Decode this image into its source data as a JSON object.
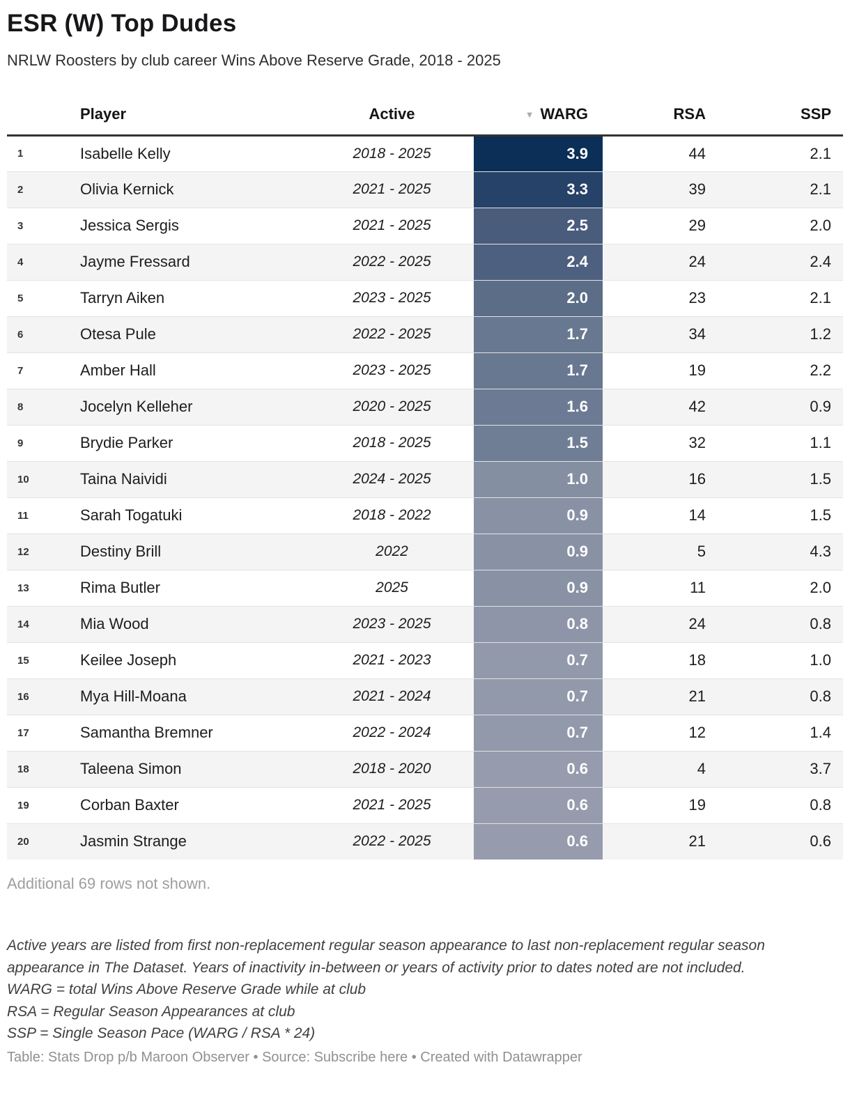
{
  "title": "ESR (W) Top Dudes",
  "subtitle": "NRLW Roosters by club career Wins Above Reserve Grade, 2018 - 2025",
  "icons": {
    "sort_desc": "▼"
  },
  "columns": {
    "rank": "",
    "player": "Player",
    "active": "Active",
    "warg": "WARG",
    "rsa": "RSA",
    "ssp": "SSP"
  },
  "chart_data": {
    "type": "table",
    "title": "ESR (W) Top Dudes",
    "subtitle": "NRLW Roosters by club career Wins Above Reserve Grade, 2018 - 2025",
    "column_labels": [
      "Player",
      "Active",
      "WARG",
      "RSA",
      "SSP"
    ],
    "sort": {
      "column": "WARG",
      "direction": "desc"
    },
    "heatmap": {
      "column": "WARG",
      "max_value": 3.9,
      "min_value": 0.6,
      "max_color": "#0b2f56",
      "min_color": "#969cad",
      "text_color": "#ffffff"
    },
    "rows": [
      {
        "rank": 1,
        "player": "Isabelle Kelly",
        "active": "2018 - 2025",
        "warg": "3.9",
        "rsa": "44",
        "ssp": "2.1",
        "warg_color": "#0b2f56"
      },
      {
        "rank": 2,
        "player": "Olivia Kernick",
        "active": "2021 - 2025",
        "warg": "3.3",
        "rsa": "39",
        "ssp": "2.1",
        "warg_color": "#274268"
      },
      {
        "rank": 3,
        "player": "Jessica Sergis",
        "active": "2021 - 2025",
        "warg": "2.5",
        "rsa": "29",
        "ssp": "2.0",
        "warg_color": "#4a5c7c"
      },
      {
        "rank": 4,
        "player": "Jayme Fressard",
        "active": "2022 - 2025",
        "warg": "2.4",
        "rsa": "24",
        "ssp": "2.4",
        "warg_color": "#4e607f"
      },
      {
        "rank": 5,
        "player": "Tarryn Aiken",
        "active": "2023 - 2025",
        "warg": "2.0",
        "rsa": "23",
        "ssp": "2.1",
        "warg_color": "#5c6d88"
      },
      {
        "rank": 6,
        "player": "Otesa Pule",
        "active": "2022 - 2025",
        "warg": "1.7",
        "rsa": "34",
        "ssp": "1.2",
        "warg_color": "#687890"
      },
      {
        "rank": 7,
        "player": "Amber Hall",
        "active": "2023 - 2025",
        "warg": "1.7",
        "rsa": "19",
        "ssp": "2.2",
        "warg_color": "#687890"
      },
      {
        "rank": 8,
        "player": "Jocelyn Kelleher",
        "active": "2020 - 2025",
        "warg": "1.6",
        "rsa": "42",
        "ssp": "0.9",
        "warg_color": "#6c7b93"
      },
      {
        "rank": 9,
        "player": "Brydie Parker",
        "active": "2018 - 2025",
        "warg": "1.5",
        "rsa": "32",
        "ssp": "1.1",
        "warg_color": "#707e95"
      },
      {
        "rank": 10,
        "player": "Taina Naividi",
        "active": "2024 - 2025",
        "warg": "1.0",
        "rsa": "16",
        "ssp": "1.5",
        "warg_color": "#858fa2"
      },
      {
        "rank": 11,
        "player": "Sarah Togatuki",
        "active": "2018 - 2022",
        "warg": "0.9",
        "rsa": "14",
        "ssp": "1.5",
        "warg_color": "#8992a5"
      },
      {
        "rank": 12,
        "player": "Destiny Brill",
        "active": "2022",
        "warg": "0.9",
        "rsa": "5",
        "ssp": "4.3",
        "warg_color": "#8992a5"
      },
      {
        "rank": 13,
        "player": "Rima Butler",
        "active": "2025",
        "warg": "0.9",
        "rsa": "11",
        "ssp": "2.0",
        "warg_color": "#8992a5"
      },
      {
        "rank": 14,
        "player": "Mia Wood",
        "active": "2023 - 2025",
        "warg": "0.8",
        "rsa": "24",
        "ssp": "0.8",
        "warg_color": "#8e95a8"
      },
      {
        "rank": 15,
        "player": "Keilee Joseph",
        "active": "2021 - 2023",
        "warg": "0.7",
        "rsa": "18",
        "ssp": "1.0",
        "warg_color": "#9299aa"
      },
      {
        "rank": 16,
        "player": "Mya Hill-Moana",
        "active": "2021 - 2024",
        "warg": "0.7",
        "rsa": "21",
        "ssp": "0.8",
        "warg_color": "#9299aa"
      },
      {
        "rank": 17,
        "player": "Samantha Bremner",
        "active": "2022 - 2024",
        "warg": "0.7",
        "rsa": "12",
        "ssp": "1.4",
        "warg_color": "#9299aa"
      },
      {
        "rank": 18,
        "player": "Taleena Simon",
        "active": "2018 - 2020",
        "warg": "0.6",
        "rsa": "4",
        "ssp": "3.7",
        "warg_color": "#969cad"
      },
      {
        "rank": 19,
        "player": "Corban Baxter",
        "active": "2021 - 2025",
        "warg": "0.6",
        "rsa": "19",
        "ssp": "0.8",
        "warg_color": "#969cad"
      },
      {
        "rank": 20,
        "player": "Jasmin Strange",
        "active": "2022 - 2025",
        "warg": "0.6",
        "rsa": "21",
        "ssp": "0.6",
        "warg_color": "#969cad"
      }
    ]
  },
  "additional_note": "Additional 69 rows not shown.",
  "notes": {
    "active_years": "Active years are listed from first non-replacement regular season appearance to last non-replacement regular season appearance in The Dataset. Years of inactivity in-between or years of activity prior to dates noted are not included.",
    "warg_def": "WARG = total Wins Above Reserve Grade while at club",
    "rsa_def": "RSA = Regular Season Appearances at club",
    "ssp_def": "SSP = Single Season Pace (WARG / RSA * 24)"
  },
  "footer": {
    "table_credit": "Table: Stats Drop p/b Maroon Observer",
    "bullet": "•",
    "source_label": "Source:",
    "source_link": "Subscribe here",
    "created_label": "Created with",
    "created_link": "Datawrapper"
  }
}
